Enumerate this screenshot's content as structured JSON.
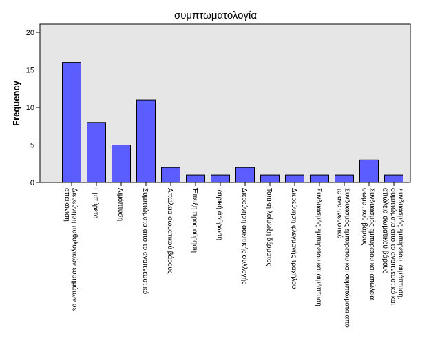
{
  "chart_data": {
    "type": "bar",
    "title": "συμπτωματολογία",
    "xlabel": "",
    "ylabel": "Frequency",
    "ylim": [
      0,
      20
    ],
    "yticks": [
      0,
      5,
      10,
      15,
      20
    ],
    "grid": false,
    "colors": {
      "bar_fill": "#5b5dff",
      "bar_stroke": "#000000",
      "plot_background": "#e6e6e6"
    },
    "categories": [
      [
        "Διερεύνηση παθολογικών ευρημάτων σε",
        "απεικόνιση"
      ],
      [
        "Εμπύρετο"
      ],
      [
        "Αιμόπτυση"
      ],
      [
        "Συμπτώματα από το αναπνευστικό"
      ],
      [
        "Απώλεια σωματικού βάρους"
      ],
      [
        "Έπειξη προς ούρηση"
      ],
      [
        "Ιατρική άρθρωση"
      ],
      [
        "Διερεύνηση ασκιτικής συλλογής"
      ],
      [
        "Τοπική λοίμωξη δέρματος"
      ],
      [
        "Διερεύνηση φλεγμονής τραχήλου"
      ],
      [
        "Συνδυασμός εμπύρετου και αιμόπτυση"
      ],
      [
        "Συνδυασμός εμπύρετου και συμπτώματα από",
        "το αναπνευστικό"
      ],
      [
        "Συνδυασμός εμπύρετου και απώλεια",
        "σωματικού βάρους"
      ],
      [
        "Συνδυασμός εμπύρετου, αιμόπτυση,",
        "συμπτώματα από το αναπνευστικό και",
        "απώλεια σωματικού βάρους"
      ]
    ],
    "values": [
      16,
      8,
      5,
      11,
      2,
      1,
      1,
      2,
      1,
      1,
      1,
      1,
      3,
      1
    ]
  }
}
